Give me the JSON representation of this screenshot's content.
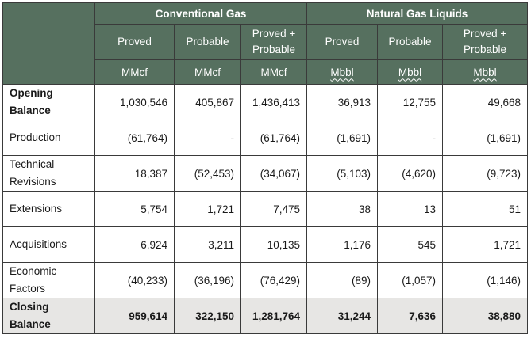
{
  "groups": {
    "conventional_gas": "Conventional Gas",
    "ngl": "Natural Gas Liquids"
  },
  "subheaders": {
    "proved": "Proved",
    "probable": "Probable",
    "proved_probable_line1": "Proved +",
    "proved_probable_line2": "Probable"
  },
  "units": {
    "gas": "MMcf",
    "ngl": "Mbbl"
  },
  "rows": [
    {
      "label1": "Opening",
      "label2": "Balance",
      "values": [
        "1,030,546",
        "405,867",
        "1,436,413",
        "36,913",
        "12,755",
        "49,668"
      ]
    },
    {
      "label1": "Production",
      "label2": "",
      "values": [
        "(61,764)",
        "-",
        "(61,764)",
        "(1,691)",
        "-",
        "(1,691)"
      ]
    },
    {
      "label1": "Technical",
      "label2": "Revisions",
      "values": [
        "18,387",
        "(52,453)",
        "(34,067)",
        "(5,103)",
        "(4,620)",
        "(9,723)"
      ]
    },
    {
      "label1": "Extensions",
      "label2": "",
      "values": [
        "5,754",
        "1,721",
        "7,475",
        "38",
        "13",
        "51"
      ]
    },
    {
      "label1": "Acquisitions",
      "label2": "",
      "values": [
        "6,924",
        "3,211",
        "10,135",
        "1,176",
        "545",
        "1,721"
      ]
    },
    {
      "label1": "Economic",
      "label2": "Factors",
      "values": [
        "(40,233)",
        "(36,196)",
        "(76,429)",
        "(89)",
        "(1,057)",
        "(1,146)"
      ]
    },
    {
      "label1": "Closing",
      "label2": "Balance",
      "values": [
        "959,614",
        "322,150",
        "1,281,764",
        "31,244",
        "7,636",
        "38,880"
      ]
    }
  ],
  "colors": {
    "header_bg": "#56705f",
    "header_text": "#ffffff",
    "closing_bg": "#e7e6e4",
    "border": "#3a3a3a"
  }
}
